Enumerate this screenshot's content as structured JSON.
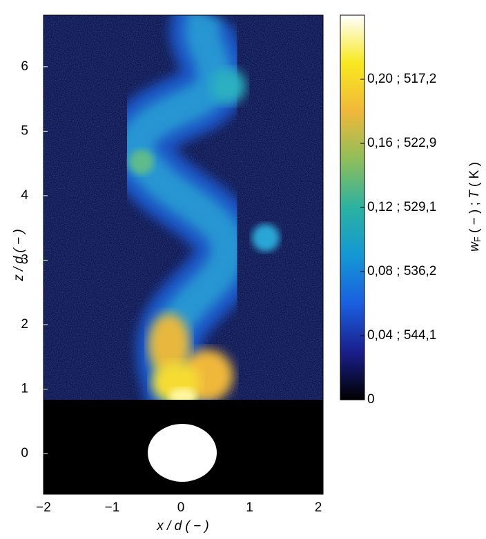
{
  "chart_data": {
    "type": "image",
    "x_label": "x / d  ( − )",
    "y_label": "z / d  ( − )",
    "xlim": [
      -2,
      2.07
    ],
    "xticks": [
      {
        "value": -2,
        "label": "−2"
      },
      {
        "value": -1,
        "label": "−1"
      },
      0,
      1,
      2
    ],
    "ylim": [
      -0.63,
      6.8
    ],
    "yticks": [
      0,
      1,
      2,
      3,
      4,
      5,
      6
    ],
    "colorbar": {
      "lim": [
        0,
        0.24
      ],
      "ticks": [
        0,
        {
          "value": 0.04,
          "label": "0,04 ;  544,1"
        },
        {
          "value": 0.08,
          "label": "0,08 ;  536,2"
        },
        {
          "value": 0.12,
          "label": "0,12 ;  529,1"
        },
        {
          "value": 0.16,
          "label": "0,16 ;  522,9"
        },
        {
          "value": 0.2,
          "label": "0,20 ;  517,2"
        }
      ],
      "label_parts": [
        "w",
        "F",
        "  ( − ) ; ",
        "T",
        " ( K )"
      ],
      "colormap": [
        "#000000",
        "#1a1f8c",
        "#1a5fe0",
        "#1497d4",
        "#2bb2a0",
        "#8fbe5a",
        "#f0b83a",
        "#f8e820",
        "#ffffff"
      ]
    }
  }
}
